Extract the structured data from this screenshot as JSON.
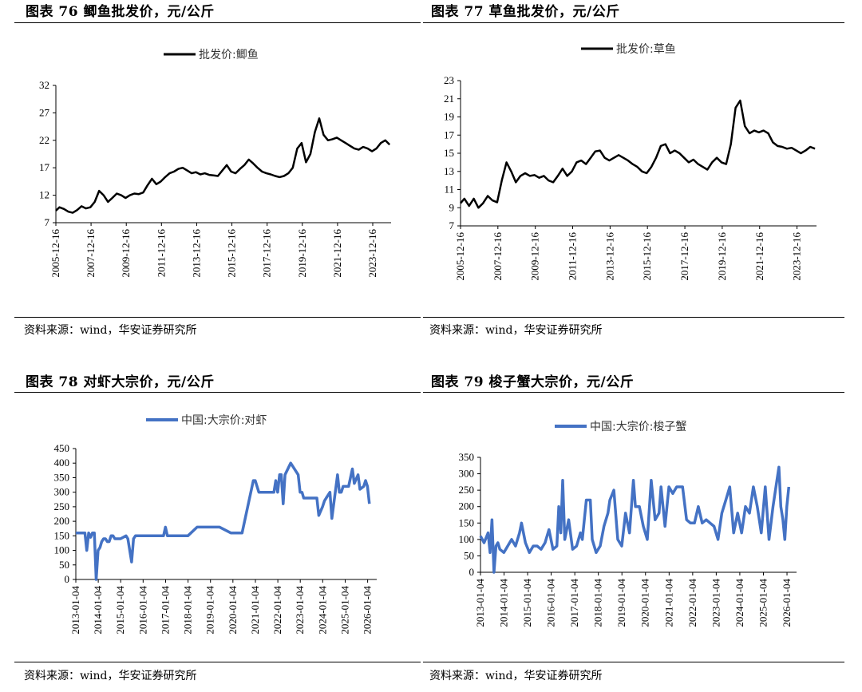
{
  "panels": [
    {
      "id": "p76",
      "title": "图表 76 鲫鱼批发价，元/公斤",
      "source": "资料来源：wind，华安证券研究所",
      "chart_data": {
        "type": "line",
        "legend": "批发价:鲫鱼",
        "legend_position": "top",
        "color": "#000000",
        "y_ticks": [
          7,
          12,
          17,
          22,
          27,
          32
        ],
        "ylim": [
          7,
          32
        ],
        "x_tick_labels": [
          "2005-12-16",
          "2007-12-16",
          "2009-12-16",
          "2011-12-16",
          "2013-12-16",
          "2015-12-16",
          "2017-12-16",
          "2019-12-16",
          "2021-12-16",
          "2023-12-16"
        ],
        "xlim": [
          "2005-12-16",
          "2024-12-31"
        ],
        "series": [
          {
            "x": [
              "2005-12-16",
              "2006-03-01",
              "2006-06-01",
              "2006-09-01",
              "2006-12-01",
              "2007-03-01",
              "2007-06-01",
              "2007-09-01",
              "2007-12-01",
              "2008-03-01",
              "2008-06-01",
              "2008-09-01",
              "2008-12-01",
              "2009-03-01",
              "2009-06-01",
              "2009-09-01",
              "2009-12-01",
              "2010-03-01",
              "2010-06-01",
              "2010-09-01",
              "2010-12-01",
              "2011-03-01",
              "2011-06-01",
              "2011-09-01",
              "2011-12-01",
              "2012-03-01",
              "2012-06-01",
              "2012-09-01",
              "2012-12-01",
              "2013-03-01",
              "2013-06-01",
              "2013-09-01",
              "2013-12-01",
              "2014-03-01",
              "2014-06-01",
              "2014-09-01",
              "2014-12-01",
              "2015-03-01",
              "2015-06-01",
              "2015-09-01",
              "2015-12-01",
              "2016-03-01",
              "2016-06-01",
              "2016-09-01",
              "2016-12-01",
              "2017-03-01",
              "2017-06-01",
              "2017-09-01",
              "2017-12-01",
              "2018-03-01",
              "2018-06-01",
              "2018-09-01",
              "2018-12-01",
              "2019-03-01",
              "2019-06-01",
              "2019-09-01",
              "2019-12-01",
              "2020-03-01",
              "2020-06-01",
              "2020-09-01",
              "2020-12-01",
              "2021-03-01",
              "2021-06-01",
              "2021-09-01",
              "2021-12-01",
              "2022-03-01",
              "2022-06-01",
              "2022-09-01",
              "2022-12-01",
              "2023-03-01",
              "2023-06-01",
              "2023-09-01",
              "2023-12-01",
              "2024-03-01",
              "2024-06-01",
              "2024-09-01",
              "2024-12-01"
            ],
            "y": [
              9.2,
              9.8,
              9.5,
              9.0,
              8.8,
              9.3,
              10.0,
              9.6,
              9.8,
              10.8,
              12.8,
              12.0,
              10.8,
              11.5,
              12.3,
              12.0,
              11.5,
              12.0,
              12.3,
              12.2,
              12.5,
              13.8,
              15.0,
              14.0,
              14.5,
              15.3,
              16.0,
              16.3,
              16.8,
              17.0,
              16.5,
              16.0,
              16.2,
              15.8,
              16.0,
              15.7,
              15.6,
              15.5,
              16.5,
              17.5,
              16.3,
              16.0,
              16.8,
              17.5,
              18.5,
              17.8,
              17.0,
              16.3,
              16.0,
              15.8,
              15.5,
              15.3,
              15.5,
              16.0,
              17.0,
              20.5,
              21.5,
              18.0,
              19.5,
              23.5,
              26.0,
              23.0,
              22.0,
              22.2,
              22.5,
              22.0,
              21.5,
              21.0,
              20.5,
              20.3,
              20.8,
              20.5,
              20.0,
              20.5,
              21.5,
              22.0,
              21.2
            ]
          }
        ]
      }
    },
    {
      "id": "p77",
      "title": "图表 77 草鱼批发价，元/公斤",
      "source": "资料来源：wind，华安证券研究所",
      "chart_data": {
        "type": "line",
        "legend": "批发价:草鱼",
        "legend_position": "top",
        "color": "#000000",
        "y_ticks": [
          7,
          9,
          11,
          13,
          15,
          17,
          19,
          21,
          23
        ],
        "ylim": [
          7,
          23
        ],
        "x_tick_labels": [
          "2005-12-16",
          "2007-12-16",
          "2009-12-16",
          "2011-12-16",
          "2013-12-16",
          "2015-12-16",
          "2017-12-16",
          "2019-12-16",
          "2021-12-16",
          "2023-12-16"
        ],
        "xlim": [
          "2005-12-16",
          "2024-12-31"
        ],
        "series": [
          {
            "x": [
              "2005-12-16",
              "2006-03-01",
              "2006-06-01",
              "2006-09-01",
              "2006-12-01",
              "2007-03-01",
              "2007-06-01",
              "2007-09-01",
              "2007-12-01",
              "2008-03-01",
              "2008-06-01",
              "2008-09-01",
              "2008-12-01",
              "2009-03-01",
              "2009-06-01",
              "2009-09-01",
              "2009-12-01",
              "2010-03-01",
              "2010-06-01",
              "2010-09-01",
              "2010-12-01",
              "2011-03-01",
              "2011-06-01",
              "2011-09-01",
              "2011-12-01",
              "2012-03-01",
              "2012-06-01",
              "2012-09-01",
              "2012-12-01",
              "2013-03-01",
              "2013-06-01",
              "2013-09-01",
              "2013-12-01",
              "2014-03-01",
              "2014-06-01",
              "2014-09-01",
              "2014-12-01",
              "2015-03-01",
              "2015-06-01",
              "2015-09-01",
              "2015-12-01",
              "2016-03-01",
              "2016-06-01",
              "2016-09-01",
              "2016-12-01",
              "2017-03-01",
              "2017-06-01",
              "2017-09-01",
              "2017-12-01",
              "2018-03-01",
              "2018-06-01",
              "2018-09-01",
              "2018-12-01",
              "2019-03-01",
              "2019-06-01",
              "2019-09-01",
              "2019-12-01",
              "2020-03-01",
              "2020-06-01",
              "2020-09-01",
              "2020-12-01",
              "2021-03-01",
              "2021-06-01",
              "2021-09-01",
              "2021-12-01",
              "2022-03-01",
              "2022-06-01",
              "2022-09-01",
              "2022-12-01",
              "2023-03-01",
              "2023-06-01",
              "2023-09-01",
              "2023-12-01",
              "2024-03-01",
              "2024-06-01",
              "2024-09-01",
              "2024-12-01"
            ],
            "y": [
              9.5,
              10.0,
              9.2,
              10.0,
              9.0,
              9.5,
              10.3,
              9.8,
              9.6,
              12.0,
              14.0,
              13.0,
              11.8,
              12.5,
              12.8,
              12.5,
              12.6,
              12.3,
              12.5,
              12.0,
              11.8,
              12.5,
              13.3,
              12.5,
              13.0,
              14.0,
              14.2,
              13.8,
              14.5,
              15.2,
              15.3,
              14.5,
              14.2,
              14.5,
              14.8,
              14.5,
              14.2,
              13.8,
              13.5,
              13.0,
              12.8,
              13.5,
              14.5,
              15.8,
              16.0,
              15.0,
              15.3,
              15.0,
              14.5,
              14.0,
              14.3,
              13.8,
              13.5,
              13.2,
              14.0,
              14.5,
              14.0,
              13.8,
              16.0,
              20.0,
              20.8,
              18.0,
              17.2,
              17.5,
              17.3,
              17.5,
              17.2,
              16.2,
              15.8,
              15.7,
              15.5,
              15.6,
              15.3,
              15.0,
              15.3,
              15.7,
              15.5
            ]
          }
        ]
      }
    },
    {
      "id": "p78",
      "title": "图表 78 对虾大宗价，元/公斤",
      "source": "资料来源：wind，华安证券研究所",
      "chart_data": {
        "type": "line",
        "legend": "中国:大宗价:对虾",
        "legend_position": "top",
        "color": "#4472C4",
        "y_ticks": [
          0,
          50,
          100,
          150,
          200,
          250,
          300,
          350,
          400,
          450
        ],
        "ylim": [
          0,
          450
        ],
        "x_tick_labels": [
          "2013-01-04",
          "2014-01-04",
          "2015-01-04",
          "2016-01-04",
          "2017-01-04",
          "2018-01-04",
          "2019-01-04",
          "2020-01-04",
          "2021-01-04",
          "2022-01-04",
          "2023-01-04",
          "2024-01-04",
          "2025-01-04",
          "2026-01-04"
        ],
        "xlim": [
          "2013-01-04",
          "2026-06-01"
        ],
        "series": [
          {
            "name": "中国:大宗价:对虾",
            "x": [
              "2013-01-04",
              "2013-06-01",
              "2013-07-01",
              "2013-08-01",
              "2013-09-01",
              "2013-10-01",
              "2013-11-01",
              "2013-12-01",
              "2014-01-01",
              "2014-02-01",
              "2014-03-01",
              "2014-04-01",
              "2014-05-01",
              "2014-06-01",
              "2014-07-01",
              "2014-08-01",
              "2014-09-01",
              "2014-10-01",
              "2014-11-01",
              "2014-12-01",
              "2015-01-01",
              "2015-04-01",
              "2015-05-01",
              "2015-07-01",
              "2015-08-01",
              "2015-09-01",
              "2015-10-01",
              "2016-01-01",
              "2016-06-01",
              "2016-12-01",
              "2017-01-01",
              "2017-02-01",
              "2017-06-01",
              "2017-12-01",
              "2018-01-01",
              "2018-06-01",
              "2018-12-01",
              "2019-01-01",
              "2019-06-01",
              "2019-12-01",
              "2020-01-01",
              "2020-06-01",
              "2020-12-01",
              "2021-01-01",
              "2021-03-01",
              "2021-06-01",
              "2021-08-01",
              "2021-10-01",
              "2021-11-01",
              "2021-12-01",
              "2022-01-01",
              "2022-02-01",
              "2022-03-01",
              "2022-04-01",
              "2022-05-01",
              "2022-08-01",
              "2022-12-01",
              "2023-01-01",
              "2023-02-01",
              "2023-03-01",
              "2023-04-01",
              "2023-07-01",
              "2023-10-01",
              "2023-11-01",
              "2024-01-01",
              "2024-02-01",
              "2024-03-01",
              "2024-05-01",
              "2024-06-01",
              "2024-09-01",
              "2024-10-01",
              "2024-11-01",
              "2024-12-01",
              "2025-02-01",
              "2025-03-01",
              "2025-05-01",
              "2025-06-01",
              "2025-08-01",
              "2025-09-01",
              "2025-11-01",
              "2025-12-01",
              "2026-01-01",
              "2026-02-01"
            ],
            "y": [
              160,
              160,
              100,
              160,
              145,
              160,
              160,
              0,
              100,
              110,
              130,
              140,
              140,
              130,
              130,
              150,
              150,
              140,
              140,
              140,
              140,
              150,
              140,
              60,
              140,
              150,
              150,
              150,
              150,
              150,
              180,
              150,
              150,
              150,
              150,
              180,
              180,
              180,
              180,
              160,
              160,
              160,
              340,
              340,
              300,
              300,
              300,
              300,
              300,
              340,
              300,
              360,
              360,
              260,
              360,
              400,
              360,
              300,
              300,
              280,
              280,
              280,
              280,
              220,
              250,
              270,
              280,
              300,
              210,
              360,
              300,
              300,
              320,
              320,
              320,
              380,
              330,
              360,
              310,
              320,
              340,
              320,
              260
            ]
          }
        ]
      }
    },
    {
      "id": "p79",
      "title": "图表 79 梭子蟹大宗价，元/公斤",
      "source": "资料来源：wind，华安证券研究所",
      "chart_data": {
        "type": "line",
        "legend": "中国:大宗价:梭子蟹",
        "legend_position": "top",
        "color": "#4472C4",
        "y_ticks": [
          0,
          50,
          100,
          150,
          200,
          250,
          300,
          350
        ],
        "ylim": [
          0,
          350
        ],
        "x_tick_labels": [
          "2013-01-04",
          "2014-01-04",
          "2015-01-04",
          "2016-01-04",
          "2017-01-04",
          "2018-01-04",
          "2019-01-04",
          "2020-01-04",
          "2021-01-04",
          "2022-01-04",
          "2023-01-04",
          "2024-01-04",
          "2025-01-04",
          "2026-01-04"
        ],
        "xlim": [
          "2013-01-04",
          "2026-06-01"
        ],
        "series": [
          {
            "name": "中国:大宗价:梭子蟹",
            "x": [
              "2013-01-04",
              "2013-03-01",
              "2013-05-01",
              "2013-06-01",
              "2013-07-01",
              "2013-08-01",
              "2013-09-01",
              "2013-10-01",
              "2013-11-01",
              "2014-01-01",
              "2014-03-01",
              "2014-05-01",
              "2014-07-01",
              "2014-09-01",
              "2014-10-01",
              "2014-12-01",
              "2015-02-01",
              "2015-04-01",
              "2015-06-01",
              "2015-08-01",
              "2015-10-01",
              "2015-12-01",
              "2016-02-01",
              "2016-04-01",
              "2016-05-01",
              "2016-06-01",
              "2016-07-01",
              "2016-08-01",
              "2016-10-01",
              "2016-12-01",
              "2017-02-01",
              "2017-04-01",
              "2017-05-01",
              "2017-07-01",
              "2017-09-01",
              "2017-10-01",
              "2017-12-01",
              "2018-02-01",
              "2018-04-01",
              "2018-06-01",
              "2018-07-01",
              "2018-09-01",
              "2018-11-01",
              "2019-01-01",
              "2019-03-01",
              "2019-05-01",
              "2019-07-01",
              "2019-08-01",
              "2019-10-01",
              "2019-12-01",
              "2020-02-01",
              "2020-04-01",
              "2020-06-01",
              "2020-08-01",
              "2020-09-01",
              "2020-11-01",
              "2021-01-01",
              "2021-03-01",
              "2021-05-01",
              "2021-08-01",
              "2021-10-01",
              "2021-12-01",
              "2022-02-01",
              "2022-04-01",
              "2022-06-01",
              "2022-08-01",
              "2022-10-01",
              "2022-12-01",
              "2023-02-01",
              "2023-04-01",
              "2023-06-01",
              "2023-08-01",
              "2023-10-01",
              "2023-12-01",
              "2024-02-01",
              "2024-04-01",
              "2024-06-01",
              "2024-08-01",
              "2024-10-01",
              "2024-12-01",
              "2025-02-01",
              "2025-04-01",
              "2025-06-01",
              "2025-08-01",
              "2025-09-01",
              "2025-10-01",
              "2025-11-01",
              "2025-12-01",
              "2026-01-01",
              "2026-02-01"
            ],
            "y": [
              110,
              90,
              120,
              60,
              160,
              0,
              80,
              90,
              70,
              60,
              80,
              100,
              80,
              120,
              150,
              90,
              60,
              80,
              80,
              70,
              90,
              130,
              70,
              80,
              200,
              120,
              280,
              100,
              160,
              70,
              80,
              120,
              100,
              220,
              220,
              100,
              60,
              80,
              140,
              180,
              220,
              250,
              100,
              80,
              180,
              120,
              280,
              200,
              200,
              140,
              100,
              280,
              160,
              180,
              260,
              140,
              260,
              240,
              260,
              260,
              160,
              150,
              150,
              200,
              150,
              160,
              150,
              140,
              100,
              180,
              220,
              260,
              120,
              180,
              120,
              200,
              180,
              260,
              200,
              120,
              260,
              100,
              200,
              280,
              320,
              200,
              160,
              100,
              200,
              260
            ]
          }
        ]
      }
    }
  ]
}
